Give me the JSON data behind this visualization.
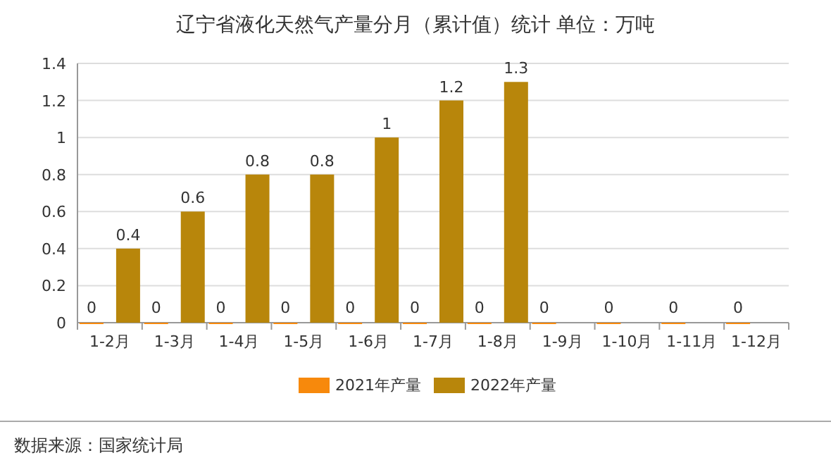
{
  "chart_data": {
    "type": "bar",
    "title": "辽宁省液化天然气产量分月（累计值）统计  单位：万吨",
    "categories": [
      "1-2月",
      "1-3月",
      "1-4月",
      "1-5月",
      "1-6月",
      "1-7月",
      "1-8月",
      "1-9月",
      "1-10月",
      "1-11月",
      "1-12月"
    ],
    "series": [
      {
        "name": "2021年产量",
        "color": "#f7890c",
        "values": [
          0,
          0,
          0,
          0,
          0,
          0,
          0,
          0,
          0,
          0,
          0
        ]
      },
      {
        "name": "2022年产量",
        "color": "#b8860b",
        "values": [
          0.4,
          0.6,
          0.8,
          0.8,
          1,
          1.2,
          1.3,
          null,
          null,
          null,
          null
        ]
      }
    ],
    "ylim": [
      0,
      1.4
    ],
    "yticks": [
      0,
      0.2,
      0.4,
      0.6,
      0.8,
      1,
      1.2,
      1.4
    ],
    "grid": "y",
    "legend": "bottom",
    "data_labels": true,
    "annotations": [
      "数据来源：国家统计局"
    ]
  }
}
